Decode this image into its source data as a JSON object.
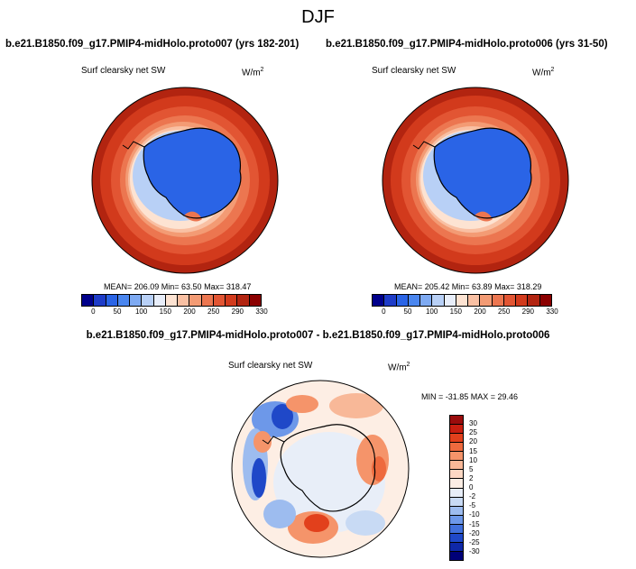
{
  "season": "DJF",
  "left_panel": {
    "title": "b.e21.B1850.f09_g17.PMIP4-midHolo.proto007 (yrs 182-201)",
    "variable": "Surf clearsky net SW",
    "units_base": "W/m",
    "units_exp": "2",
    "stats": "MEAN= 206.09  Min=  63.50  Max= 318.47"
  },
  "right_panel": {
    "title": "b.e21.B1850.f09_g17.PMIP4-midHolo.proto006 (yrs 31-50)",
    "variable": "Surf clearsky net SW",
    "units_base": "W/m",
    "units_exp": "2",
    "stats": "MEAN= 205.42  Min=  63.89  Max= 318.29"
  },
  "diff_panel": {
    "title": "b.e21.B1850.f09_g17.PMIP4-midHolo.proto007 - b.e21.B1850.f09_g17.PMIP4-midHolo.proto006",
    "variable": "Surf clearsky net SW",
    "units_base": "W/m",
    "units_exp": "2",
    "stats": "MIN = -31.85 MAX =  29.46"
  },
  "abs_colorbar": {
    "colors": [
      "#00008b",
      "#1e3cc8",
      "#2a64e6",
      "#4a86ef",
      "#7eaaf2",
      "#b8d0f6",
      "#e8eefa",
      "#fde3d2",
      "#f9c0a3",
      "#f39b74",
      "#ec7650",
      "#e25533",
      "#d23a1c",
      "#b22410",
      "#8b0000"
    ],
    "labels": [
      "0",
      "50",
      "100",
      "150",
      "200",
      "250",
      "290",
      "330"
    ]
  },
  "diff_colorbar": {
    "colors_top_to_bottom": [
      "#9a0c0c",
      "#c81e10",
      "#e2401c",
      "#ee6a3e",
      "#f5946a",
      "#f8b898",
      "#fcd8c4",
      "#fdeee4",
      "#e8eef8",
      "#c8daf4",
      "#9dbcef",
      "#6d98e9",
      "#4170dc",
      "#1f48c8",
      "#0f28a8",
      "#000078"
    ],
    "labels_top_to_bottom": [
      "30",
      "25",
      "20",
      "15",
      "10",
      "5",
      "2",
      "0",
      "-2",
      "-5",
      "-10",
      "-15",
      "-20",
      "-25",
      "-30"
    ]
  }
}
